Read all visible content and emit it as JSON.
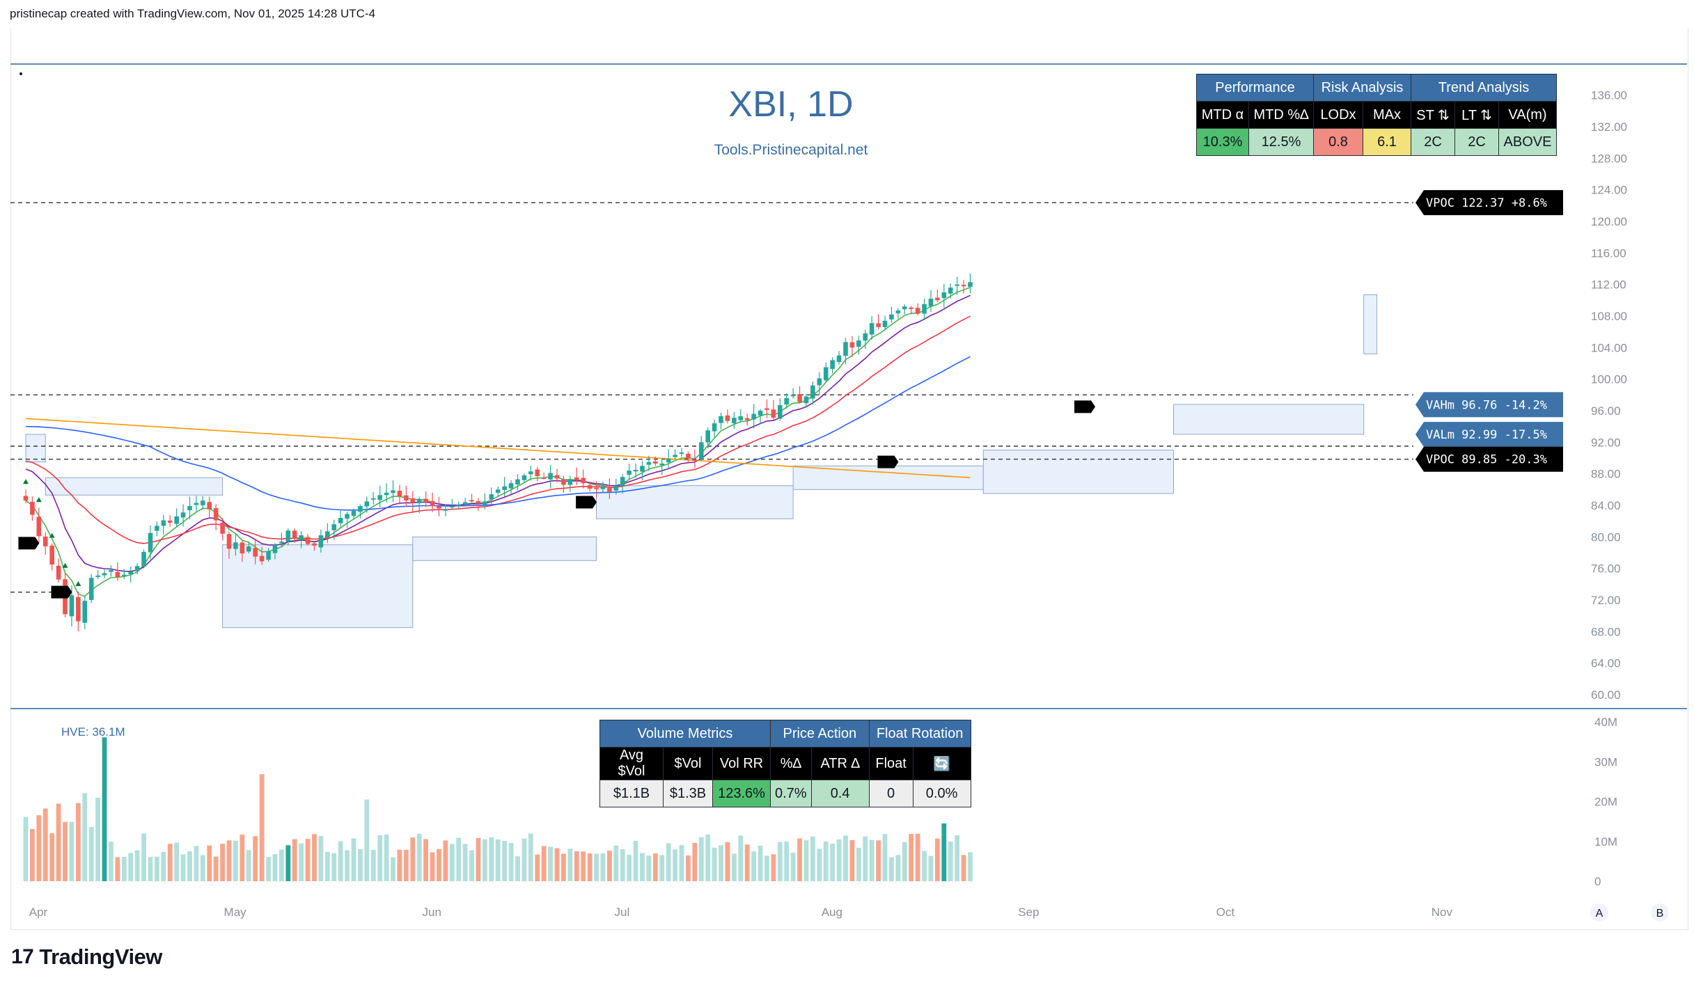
{
  "header": "pristinecap created with TradingView.com, Nov 01, 2025 14:28 UTC-4",
  "chart_title": "XBI, 1D",
  "chart_subtitle": "Tools.Pristinecapital.net",
  "brand": {
    "logo_mark": "17",
    "logo_text": "TradingView"
  },
  "colors": {
    "up": "#26a69a",
    "down": "#ef5350",
    "ema_green": "#4caf50",
    "ema_purple": "#7b1fa2",
    "ema_red": "#f23645",
    "sma_blue": "#2962ff",
    "sma_orange": "#ff9800",
    "table_group": "#3a6ea5",
    "cell_green": "#4fbf6f",
    "cell_lightgreen": "#b7e1c6",
    "cell_red": "#f28b82",
    "cell_yellow": "#f3e27c",
    "cell_gray": "#eeeeee"
  },
  "performance_table": {
    "groups": [
      {
        "label": "Performance",
        "span": 2
      },
      {
        "label": "Risk Analysis",
        "span": 2
      },
      {
        "label": "Trend Analysis",
        "span": 3
      }
    ],
    "headers": [
      "MTD α",
      "MTD %∆",
      "LODx",
      "MAx",
      "ST ⇅",
      "LT ⇅",
      "VA(m)"
    ],
    "values": [
      "10.3%",
      "12.5%",
      "0.8",
      "6.1",
      "2C",
      "2C",
      "ABOVE"
    ],
    "value_colors": [
      "#4fbf6f",
      "#b7e1c6",
      "#f28b82",
      "#f3e27c",
      "#b7e1c6",
      "#b7e1c6",
      "#b7e1c6"
    ]
  },
  "volume_table": {
    "groups": [
      {
        "label": "Volume Metrics",
        "span": 3
      },
      {
        "label": "Price Action",
        "span": 2
      },
      {
        "label": "Float Rotation",
        "span": 2
      }
    ],
    "headers": [
      "Avg $Vol",
      "$Vol",
      "Vol RR",
      "%∆",
      "ATR ∆",
      "Float",
      "🔄"
    ],
    "values": [
      "$1.1B",
      "$1.3B",
      "123.6%",
      "0.7%",
      "0.4",
      "0",
      "0.0%"
    ],
    "value_colors": [
      "#eeeeee",
      "#eeeeee",
      "#4fbf6f",
      "#b7e1c6",
      "#b7e1c6",
      "#eeeeee",
      "#eeeeee"
    ]
  },
  "price_labels": [
    {
      "text": "VPOC 122.37 +8.6%",
      "price": 122.37,
      "style": "black"
    },
    {
      "text": "VAHm 96.76 -14.2%",
      "price": 96.76,
      "style": "blue"
    },
    {
      "text": "VALm 92.99 -17.5%",
      "price": 92.99,
      "style": "blue"
    },
    {
      "text": "VPOC 89.85 -20.3%",
      "price": 89.85,
      "style": "black"
    }
  ],
  "hve_label": "HVE: 36.1M",
  "scale_buttons": [
    "A",
    "B"
  ],
  "chart_data": {
    "type": "candlestick",
    "title": "XBI, 1D",
    "price_axis": {
      "ylim": [
        60,
        138
      ],
      "ticks": [
        "136.00",
        "132.00",
        "128.00",
        "124.00",
        "120.00",
        "116.00",
        "112.00",
        "108.00",
        "104.00",
        "100.00",
        "96.00",
        "92.00",
        "88.00",
        "84.00",
        "80.00",
        "76.00",
        "72.00",
        "68.00",
        "64.00",
        "60.00"
      ]
    },
    "volume_axis": {
      "ylim": [
        0,
        40
      ],
      "unit": "M",
      "ticks": [
        "40M",
        "30M",
        "20M",
        "10M",
        "0"
      ]
    },
    "x_labels": [
      "Apr",
      "May",
      "Jun",
      "Jul",
      "Aug",
      "Sep",
      "Oct",
      "Nov"
    ],
    "x_label_index": [
      0,
      30,
      60,
      89,
      121,
      151,
      181,
      214
    ],
    "grid": false,
    "horizontal_lines": [
      122.37,
      98.0,
      91.5,
      89.85,
      73.0
    ],
    "close": [
      84.6,
      82.8,
      80.1,
      78.8,
      76.5,
      74.6,
      70.2,
      72.6,
      69.3,
      71.9,
      74.8,
      75.1,
      75.4,
      75.8,
      74.9,
      75.2,
      75.6,
      76.3,
      78.1,
      80.5,
      81.4,
      82.1,
      81.8,
      82.6,
      83.1,
      83.9,
      84.3,
      84.6,
      83.5,
      82.1,
      80.4,
      78.5,
      79.3,
      77.9,
      78.8,
      77.5,
      76.9,
      78.2,
      79.0,
      79.4,
      80.8,
      79.8,
      80.2,
      79.1,
      78.9,
      80.2,
      80.7,
      81.6,
      82.4,
      82.9,
      83.3,
      83.9,
      84.5,
      84.9,
      85.3,
      85.6,
      85.9,
      85.1,
      84.6,
      84.3,
      84.8,
      84.4,
      83.9,
      83.6,
      83.5,
      83.9,
      84.1,
      84.4,
      84.6,
      84.2,
      84.5,
      85.4,
      86.0,
      86.4,
      86.8,
      87.3,
      87.8,
      88.3,
      87.7,
      87.5,
      88.1,
      87.4,
      86.6,
      87.3,
      87.2,
      86.8,
      86.1,
      86.2,
      86.4,
      85.7,
      86.4,
      87.6,
      88.4,
      88.5,
      89.0,
      89.5,
      89.3,
      89.3,
      89.9,
      90.4,
      90.7,
      89.9,
      89.8,
      92.0,
      93.5,
      94.4,
      95.3,
      94.7,
      95.1,
      95.3,
      94.8,
      95.6,
      96.0,
      96.1,
      95.1,
      96.7,
      97.6,
      98.0,
      97.1,
      97.8,
      99.2,
      100.1,
      101.5,
      102.4,
      103.0,
      104.7,
      104.0,
      104.9,
      105.8,
      107.1,
      106.6,
      107.4,
      108.2,
      108.7,
      109.2,
      108.9,
      108.3,
      109.5,
      110.2,
      110.0,
      111.0,
      111.6,
      112.0,
      111.9,
      112.3
    ],
    "series": [
      {
        "name": "EMA fast",
        "color": "#4caf50"
      },
      {
        "name": "EMA mid",
        "color": "#7b1fa2"
      },
      {
        "name": "EMA 21",
        "color": "#f23645"
      },
      {
        "name": "SMA 50",
        "color": "#2962ff"
      },
      {
        "name": "SMA 200",
        "color": "#ff9800"
      }
    ]
  }
}
